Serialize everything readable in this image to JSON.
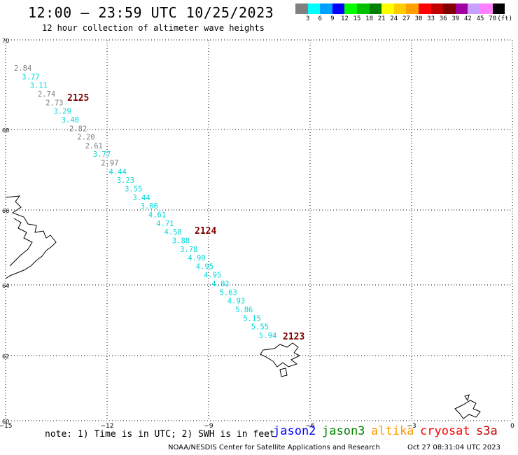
{
  "header": {
    "title": "12:00 – 23:59 UTC 10/25/2023",
    "subtitle": "12 hour collection of altimeter wave heights"
  },
  "scale": {
    "unit": "(ft)",
    "colors": [
      "#808080",
      "#00ffff",
      "#00a0ff",
      "#0000ff",
      "#00ff00",
      "#00c000",
      "#008000",
      "#ffff00",
      "#ffcc00",
      "#ffa000",
      "#ff0000",
      "#c00000",
      "#800000",
      "#a000a0",
      "#c8a0ff",
      "#ff80ff",
      "#000000"
    ],
    "labels": [
      "3",
      "6",
      "9",
      "12",
      "15",
      "18",
      "21",
      "24",
      "27",
      "30",
      "33",
      "36",
      "39",
      "42",
      "45",
      "70"
    ]
  },
  "axes": {
    "lat_labels": [
      "70",
      "68",
      "66",
      "64",
      "62",
      "60"
    ],
    "lon_labels": [
      "−15",
      "−12",
      "−9",
      "−6",
      "−3",
      "0"
    ]
  },
  "chart_data": {
    "type": "map",
    "lat_range": [
      60,
      70
    ],
    "lon_range": [
      -15,
      0
    ],
    "grid": true,
    "passes": [
      {
        "label": "2125",
        "color": "#800000"
      },
      {
        "label": "2124",
        "color": "#800000"
      },
      {
        "label": "2123",
        "color": "#800000"
      }
    ],
    "swh_ft": [
      {
        "v": "2.84",
        "c": "gray"
      },
      {
        "v": "3.77",
        "c": "cyan"
      },
      {
        "v": "3.11",
        "c": "cyan"
      },
      {
        "v": "2.74",
        "c": "gray"
      },
      {
        "v": "2.73",
        "c": "gray"
      },
      {
        "v": "3.29",
        "c": "cyan"
      },
      {
        "v": "3.40",
        "c": "cyan"
      },
      {
        "v": "2.82",
        "c": "gray"
      },
      {
        "v": "2.20",
        "c": "gray"
      },
      {
        "v": "2.61",
        "c": "gray"
      },
      {
        "v": "3.77",
        "c": "cyan"
      },
      {
        "v": "2.97",
        "c": "gray"
      },
      {
        "v": "4.44",
        "c": "cyan"
      },
      {
        "v": "3.23",
        "c": "cyan"
      },
      {
        "v": "3.55",
        "c": "cyan"
      },
      {
        "v": "3.44",
        "c": "cyan"
      },
      {
        "v": "3.06",
        "c": "cyan"
      },
      {
        "v": "4.61",
        "c": "cyan"
      },
      {
        "v": "4.71",
        "c": "cyan"
      },
      {
        "v": "4.58",
        "c": "cyan"
      },
      {
        "v": "3.88",
        "c": "cyan"
      },
      {
        "v": "3.78",
        "c": "cyan"
      },
      {
        "v": "4.90",
        "c": "cyan"
      },
      {
        "v": "4.95",
        "c": "cyan"
      },
      {
        "v": "4.95",
        "c": "cyan"
      },
      {
        "v": "4.92",
        "c": "cyan"
      },
      {
        "v": "5.63",
        "c": "cyan"
      },
      {
        "v": "4.93",
        "c": "cyan"
      },
      {
        "v": "5.86",
        "c": "cyan"
      },
      {
        "v": "5.15",
        "c": "cyan"
      },
      {
        "v": "5.55",
        "c": "cyan"
      },
      {
        "v": "5.94",
        "c": "cyan"
      }
    ]
  },
  "footer": {
    "note": "note: 1) Time is in UTC; 2) SWH is in feet",
    "satellites": [
      {
        "name": "jason2",
        "color": "#0000ff"
      },
      {
        "name": "jason3",
        "color": "#008000"
      },
      {
        "name": "altika",
        "color": "#ff9900"
      },
      {
        "name": "cryosat",
        "color": "#ff0000"
      },
      {
        "name": "s3a",
        "color": "#c00000"
      }
    ],
    "credit": "NOAA/NESDIS Center for Satellite Applications and Research",
    "timestamp": "Oct 27 08:31:04 UTC 2023"
  }
}
